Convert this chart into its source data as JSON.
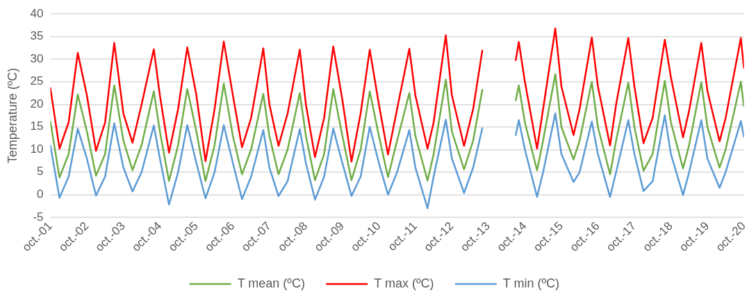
{
  "chart_data": {
    "type": "line",
    "ylabel": "Temperature (ºC)",
    "ylim": [
      -5,
      40
    ],
    "yticks": [
      -5,
      0,
      5,
      10,
      15,
      20,
      25,
      30,
      35,
      40
    ],
    "xlim": [
      "2001-10",
      "2020-10"
    ],
    "xticks": [
      {
        "value": "2001-10",
        "label": "oct.-01"
      },
      {
        "value": "2002-10",
        "label": "oct.-02"
      },
      {
        "value": "2003-10",
        "label": "oct.-03"
      },
      {
        "value": "2004-10",
        "label": "oct.-04"
      },
      {
        "value": "2005-10",
        "label": "oct.-05"
      },
      {
        "value": "2006-10",
        "label": "oct.-06"
      },
      {
        "value": "2007-10",
        "label": "oct.-07"
      },
      {
        "value": "2008-10",
        "label": "oct.-08"
      },
      {
        "value": "2009-10",
        "label": "oct.-09"
      },
      {
        "value": "2010-10",
        "label": "oct.-10"
      },
      {
        "value": "2011-10",
        "label": "oct.-11"
      },
      {
        "value": "2012-10",
        "label": "oct.-12"
      },
      {
        "value": "2013-10",
        "label": "oct.-13"
      },
      {
        "value": "2014-10",
        "label": "oct.-14"
      },
      {
        "value": "2015-10",
        "label": "oct.-15"
      },
      {
        "value": "2016-10",
        "label": "oct.-16"
      },
      {
        "value": "2017-10",
        "label": "oct.-17"
      },
      {
        "value": "2018-10",
        "label": "oct.-18"
      },
      {
        "value": "2019-10",
        "label": "oct.-19"
      },
      {
        "value": "2020-10",
        "label": "oct.-20"
      }
    ],
    "x": [
      "2001-10",
      "2002-01",
      "2002-04",
      "2002-07",
      "2002-10",
      "2003-01",
      "2003-04",
      "2003-07",
      "2003-10",
      "2004-01",
      "2004-04",
      "2004-08",
      "2004-10",
      "2005-01",
      "2005-04",
      "2005-07",
      "2005-10",
      "2006-01",
      "2006-04",
      "2006-07",
      "2006-10",
      "2007-01",
      "2007-04",
      "2007-08",
      "2007-10",
      "2008-01",
      "2008-04",
      "2008-08",
      "2008-10",
      "2009-01",
      "2009-04",
      "2009-07",
      "2009-10",
      "2010-01",
      "2010-04",
      "2010-07",
      "2010-10",
      "2011-01",
      "2011-04",
      "2011-08",
      "2011-10",
      "2012-02",
      "2012-04",
      "2012-08",
      "2012-10",
      "2013-02",
      "2013-05",
      "2013-08",
      "2014-01",
      "2014-07",
      "2014-08",
      "2014-10",
      "2015-02",
      "2015-04",
      "2015-08",
      "2015-10",
      "2016-02",
      "2016-04",
      "2016-08",
      "2016-10",
      "2017-02",
      "2017-04",
      "2017-08",
      "2017-10",
      "2018-01",
      "2018-04",
      "2018-08",
      "2018-10",
      "2019-02",
      "2019-04",
      "2019-08",
      "2019-10",
      "2020-02",
      "2020-04",
      "2020-09",
      "2020-10"
    ],
    "series": [
      {
        "name": "T mean (ºC)",
        "color": "#70ad47",
        "values": [
          16.2,
          3.8,
          9,
          22.2,
          14,
          4.2,
          9,
          24.2,
          12,
          5.4,
          11,
          22.9,
          14,
          3.0,
          11,
          23.4,
          14,
          3.0,
          11,
          24.6,
          13,
          4.5,
          10,
          22.3,
          13,
          4.5,
          10,
          22.5,
          13,
          3.2,
          9,
          23.4,
          13,
          3.2,
          10,
          22.9,
          13,
          3.9,
          12,
          22.5,
          13,
          3.1,
          9,
          25.5,
          14,
          5.6,
          12,
          23.2,
          null,
          20.9,
          24.2,
          16,
          5.4,
          12,
          26.7,
          15,
          7.8,
          12,
          25.0,
          15,
          4.5,
          12,
          24.8,
          15,
          5.3,
          9,
          25.2,
          16,
          5.8,
          11,
          24.9,
          15,
          6.0,
          10,
          25.0,
          19.6
        ]
      },
      {
        "name": "T max (ºC)",
        "color": "#ff0000",
        "values": [
          23.6,
          10.2,
          16,
          31.4,
          22,
          9.7,
          16,
          33.6,
          18,
          11.5,
          20,
          32.2,
          22,
          9.3,
          19,
          32.6,
          22,
          7.4,
          19,
          33.9,
          22,
          10.5,
          17,
          32.4,
          20,
          10.8,
          18,
          32.1,
          20,
          8.3,
          17,
          32.8,
          21,
          7.3,
          18,
          32.1,
          20,
          8.9,
          19,
          32.3,
          22,
          10.2,
          16,
          35.3,
          22,
          10.8,
          19,
          31.9,
          null,
          29.8,
          33.8,
          25,
          10.2,
          19,
          36.8,
          24,
          13.2,
          19,
          34.8,
          24,
          10.9,
          20,
          34.7,
          24,
          11.4,
          17,
          34.3,
          26,
          12.7,
          18.6,
          33.6,
          23,
          11.8,
          17,
          34.7,
          28.1
        ]
      },
      {
        "name": "T min (ºC)",
        "color": "#5b9bd5",
        "values": [
          10.9,
          -0.7,
          4,
          14.6,
          8,
          -0.2,
          4,
          15.8,
          6,
          0.7,
          5,
          15.3,
          8,
          -2.2,
          5,
          15.4,
          7,
          -0.8,
          5,
          15.4,
          7,
          -1.0,
          4,
          14.3,
          6,
          -0.3,
          3,
          14.5,
          7,
          -1.1,
          4,
          14.6,
          7,
          -0.3,
          4,
          15.0,
          7,
          0.0,
          5,
          14.3,
          6,
          -3.0,
          4,
          16.6,
          8,
          0.4,
          6,
          14.7,
          null,
          13.2,
          16.5,
          10,
          -0.5,
          5,
          18.0,
          9,
          2.8,
          5,
          16.2,
          9,
          -0.5,
          5,
          16.5,
          9,
          0.8,
          3,
          17.6,
          9,
          -0.1,
          5,
          16.5,
          8,
          1.5,
          5,
          16.3,
          12.8
        ]
      }
    ],
    "grid": "y",
    "legend": "bottom",
    "marker": "none",
    "line_style": "solid"
  }
}
